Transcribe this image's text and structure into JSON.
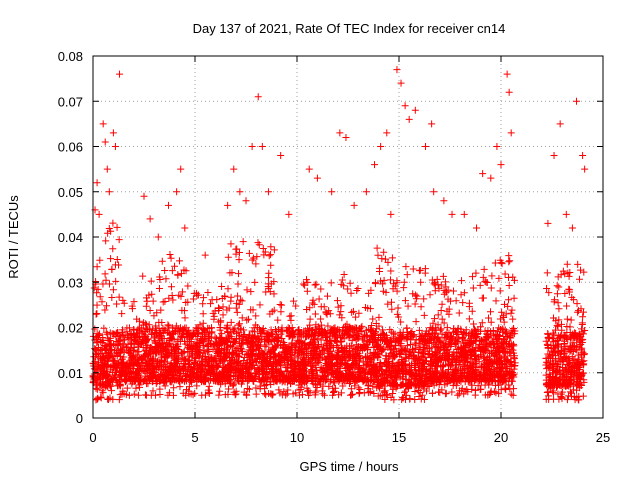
{
  "chart_data": {
    "type": "scatter",
    "title": "Day 137 of 2021, Rate Of TEC Index for receiver cn14",
    "xlabel": "GPS time / hours",
    "ylabel": "ROTI / TECUs",
    "xlim": [
      0,
      25
    ],
    "ylim": [
      0,
      0.08
    ],
    "xticks": [
      0,
      5,
      10,
      15,
      20,
      25
    ],
    "yticks": [
      0,
      0.01,
      0.02,
      0.03,
      0.04,
      0.05,
      0.06,
      0.07,
      0.08
    ],
    "grid": true,
    "marker": "+",
    "series_color": "#ff0000",
    "data_gap_hours": [
      20.7,
      22.2
    ],
    "series": [
      {
        "points": [
          [
            0.1,
            0.046
          ],
          [
            0.2,
            0.052
          ],
          [
            0.3,
            0.045
          ],
          [
            0.5,
            0.065
          ],
          [
            0.6,
            0.061
          ],
          [
            0.7,
            0.055
          ],
          [
            0.8,
            0.05
          ],
          [
            1.0,
            0.063
          ],
          [
            1.1,
            0.06
          ],
          [
            1.3,
            0.076
          ],
          [
            2.5,
            0.049
          ],
          [
            2.8,
            0.044
          ],
          [
            3.2,
            0.04
          ],
          [
            3.7,
            0.047
          ],
          [
            4.1,
            0.05
          ],
          [
            4.3,
            0.055
          ],
          [
            4.5,
            0.042
          ],
          [
            5.5,
            0.036
          ],
          [
            6.6,
            0.047
          ],
          [
            6.9,
            0.055
          ],
          [
            7.2,
            0.05
          ],
          [
            7.5,
            0.048
          ],
          [
            7.8,
            0.06
          ],
          [
            8.1,
            0.071
          ],
          [
            8.3,
            0.06
          ],
          [
            8.6,
            0.05
          ],
          [
            9.2,
            0.058
          ],
          [
            9.6,
            0.045
          ],
          [
            10.6,
            0.055
          ],
          [
            11.0,
            0.053
          ],
          [
            11.7,
            0.05
          ],
          [
            12.1,
            0.063
          ],
          [
            12.4,
            0.062
          ],
          [
            12.8,
            0.047
          ],
          [
            13.4,
            0.05
          ],
          [
            13.8,
            0.056
          ],
          [
            14.1,
            0.06
          ],
          [
            14.4,
            0.063
          ],
          [
            14.6,
            0.045
          ],
          [
            14.9,
            0.077
          ],
          [
            15.1,
            0.074
          ],
          [
            15.3,
            0.069
          ],
          [
            15.5,
            0.066
          ],
          [
            15.8,
            0.068
          ],
          [
            16.3,
            0.06
          ],
          [
            16.6,
            0.065
          ],
          [
            16.7,
            0.05
          ],
          [
            17.2,
            0.048
          ],
          [
            17.6,
            0.045
          ],
          [
            18.2,
            0.045
          ],
          [
            18.8,
            0.042
          ],
          [
            19.1,
            0.054
          ],
          [
            19.5,
            0.053
          ],
          [
            19.8,
            0.06
          ],
          [
            20.0,
            0.056
          ],
          [
            20.3,
            0.076
          ],
          [
            20.4,
            0.072
          ],
          [
            20.5,
            0.063
          ],
          [
            22.3,
            0.043
          ],
          [
            22.6,
            0.058
          ],
          [
            22.9,
            0.065
          ],
          [
            23.2,
            0.045
          ],
          [
            23.5,
            0.042
          ],
          [
            23.7,
            0.07
          ],
          [
            24.0,
            0.058
          ],
          [
            24.1,
            0.055
          ]
        ],
        "dense_bands": [
          [
            0.0,
            0.4,
            0.004,
            0.035
          ],
          [
            0.4,
            1.4,
            0.004,
            0.045
          ],
          [
            1.4,
            2.3,
            0.005,
            0.026
          ],
          [
            2.3,
            3.3,
            0.005,
            0.032
          ],
          [
            3.3,
            4.7,
            0.005,
            0.038
          ],
          [
            4.7,
            5.7,
            0.005,
            0.028
          ],
          [
            5.7,
            6.5,
            0.005,
            0.03
          ],
          [
            6.5,
            8.9,
            0.005,
            0.04
          ],
          [
            8.9,
            10.3,
            0.005,
            0.026
          ],
          [
            10.3,
            11.5,
            0.005,
            0.031
          ],
          [
            11.5,
            12.7,
            0.005,
            0.033
          ],
          [
            12.7,
            13.9,
            0.005,
            0.031
          ],
          [
            13.9,
            15.1,
            0.004,
            0.038
          ],
          [
            15.1,
            16.3,
            0.004,
            0.035
          ],
          [
            16.3,
            17.5,
            0.005,
            0.032
          ],
          [
            17.5,
            18.6,
            0.005,
            0.031
          ],
          [
            18.6,
            19.6,
            0.005,
            0.033
          ],
          [
            19.6,
            20.7,
            0.005,
            0.036
          ],
          [
            22.2,
            23.2,
            0.004,
            0.033
          ],
          [
            23.2,
            24.1,
            0.004,
            0.034
          ]
        ]
      }
    ]
  }
}
